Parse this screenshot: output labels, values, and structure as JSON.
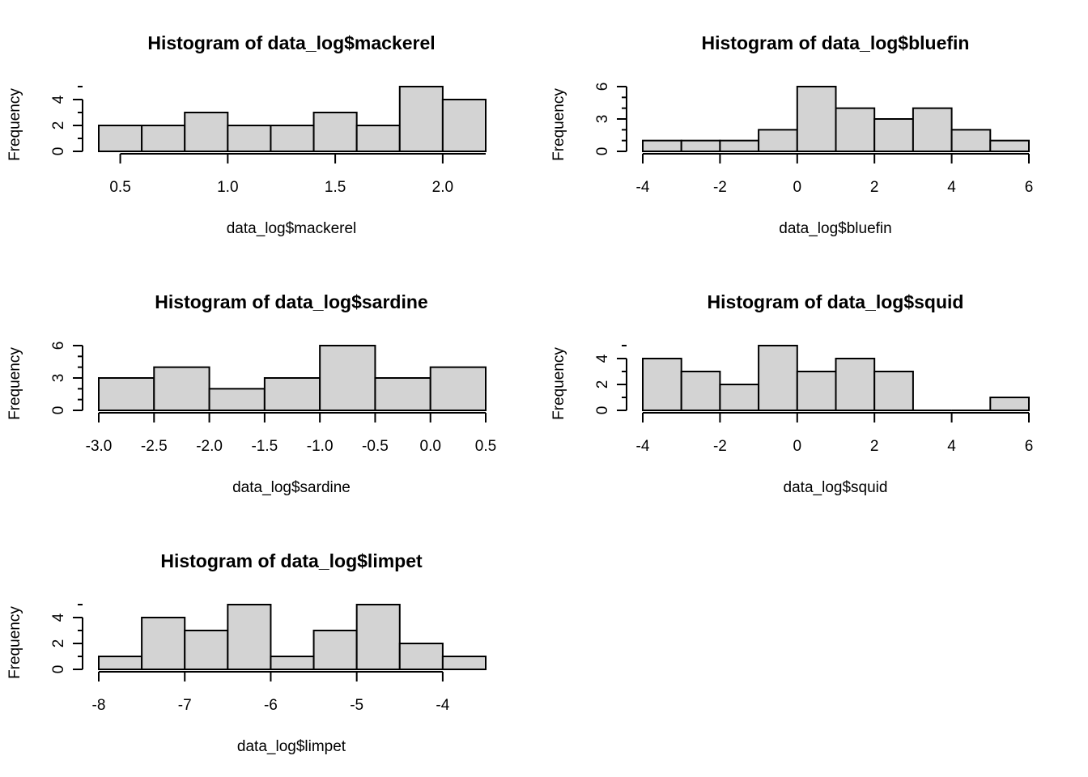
{
  "chart_data": [
    {
      "type": "bar",
      "title": "Histogram of data_log$mackerel",
      "xlabel": "data_log$mackerel",
      "ylabel": "Frequency",
      "breaks": [
        0.4,
        0.6,
        0.8,
        1.0,
        1.2,
        1.4,
        1.6,
        1.8,
        2.0,
        2.2
      ],
      "counts": [
        2,
        2,
        3,
        2,
        2,
        3,
        2,
        5,
        4
      ],
      "xticks": [
        0.5,
        1.0,
        1.5,
        2.0
      ],
      "xtick_labels": [
        "0.5",
        "1.0",
        "1.5",
        "2.0"
      ],
      "xaxis_range": [
        0.5,
        2.2
      ],
      "yticks": [
        0,
        2,
        4
      ],
      "ytick_labels": [
        "0",
        "2",
        "4"
      ],
      "ylim": [
        0,
        5
      ],
      "grid": false
    },
    {
      "type": "bar",
      "title": "Histogram of data_log$bluefin",
      "xlabel": "data_log$bluefin",
      "ylabel": "Frequency",
      "breaks": [
        -4,
        -3,
        -2,
        -1,
        0,
        1,
        2,
        3,
        4,
        5,
        6
      ],
      "counts": [
        1,
        1,
        1,
        2,
        6,
        4,
        3,
        4,
        2,
        1
      ],
      "xticks": [
        -4,
        -2,
        0,
        2,
        4,
        6
      ],
      "xtick_labels": [
        "-4",
        "-2",
        "0",
        "2",
        "4",
        "6"
      ],
      "xaxis_range": [
        -4,
        6
      ],
      "yticks": [
        0,
        3,
        6
      ],
      "ytick_labels": [
        "0",
        "3",
        "6"
      ],
      "ylim": [
        0,
        6
      ],
      "grid": false
    },
    {
      "type": "bar",
      "title": "Histogram of data_log$sardine",
      "xlabel": "data_log$sardine",
      "ylabel": "Frequency",
      "breaks": [
        -3.0,
        -2.5,
        -2.0,
        -1.5,
        -1.0,
        -0.5,
        0.0,
        0.5
      ],
      "counts": [
        3,
        4,
        2,
        3,
        6,
        3,
        4
      ],
      "xticks": [
        -3.0,
        -2.5,
        -2.0,
        -1.5,
        -1.0,
        -0.5,
        0.0,
        0.5
      ],
      "xtick_labels": [
        "-3.0",
        "-2.5",
        "-2.0",
        "-1.5",
        "-1.0",
        "-0.5",
        "0.0",
        "0.5"
      ],
      "xaxis_range": [
        -3.0,
        0.5
      ],
      "yticks": [
        0,
        3,
        6
      ],
      "ytick_labels": [
        "0",
        "3",
        "6"
      ],
      "ylim": [
        0,
        6
      ],
      "grid": false
    },
    {
      "type": "bar",
      "title": "Histogram of data_log$squid",
      "xlabel": "data_log$squid",
      "ylabel": "Frequency",
      "breaks": [
        -4,
        -3,
        -2,
        -1,
        0,
        1,
        2,
        3,
        4,
        5,
        6
      ],
      "counts": [
        4,
        3,
        2,
        5,
        3,
        4,
        3,
        0,
        0,
        1
      ],
      "xticks": [
        -4,
        -2,
        0,
        2,
        4,
        6
      ],
      "xtick_labels": [
        "-4",
        "-2",
        "0",
        "2",
        "4",
        "6"
      ],
      "xaxis_range": [
        -4,
        6
      ],
      "yticks": [
        0,
        2,
        4
      ],
      "ytick_labels": [
        "0",
        "2",
        "4"
      ],
      "ylim": [
        0,
        5
      ],
      "grid": false
    },
    {
      "type": "bar",
      "title": "Histogram of data_log$limpet",
      "xlabel": "data_log$limpet",
      "ylabel": "Frequency",
      "breaks": [
        -8.0,
        -7.5,
        -7.0,
        -6.5,
        -6.0,
        -5.5,
        -5.0,
        -4.5,
        -4.0,
        -3.5
      ],
      "counts": [
        1,
        4,
        3,
        5,
        1,
        3,
        5,
        2,
        1
      ],
      "xticks": [
        -8,
        -7,
        -6,
        -5,
        -4
      ],
      "xtick_labels": [
        "-8",
        "-7",
        "-6",
        "-5",
        "-4"
      ],
      "xaxis_range": [
        -8,
        -4
      ],
      "yticks": [
        0,
        2,
        4
      ],
      "ytick_labels": [
        "0",
        "2",
        "4"
      ],
      "ylim": [
        0,
        5
      ],
      "grid": false
    }
  ],
  "colors": {
    "bar_fill": "#d3d3d3",
    "bar_stroke": "#000000",
    "background": "#ffffff"
  }
}
